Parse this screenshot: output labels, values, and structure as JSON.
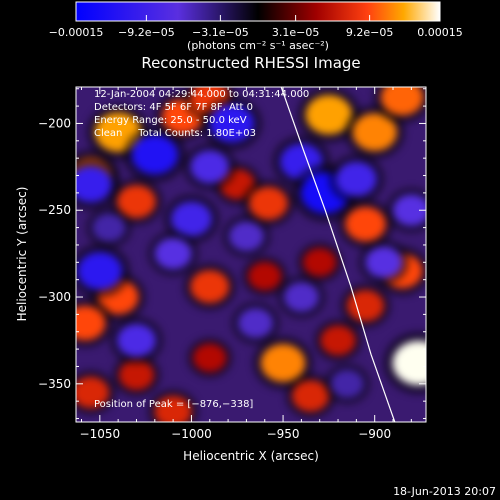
{
  "chart_data": {
    "type": "heatmap",
    "title": "Reconstructed RHESSI Image",
    "xlabel": "Heliocentric X (arcsec)",
    "ylabel": "Heliocentric Y (arcsec)",
    "xlim": [
      -1063,
      -872
    ],
    "ylim": [
      -372,
      -179
    ],
    "xticks": [
      -1050,
      -1000,
      -950,
      -900
    ],
    "xtick_labels": [
      "−1050",
      "−1000",
      "−950",
      "−900"
    ],
    "yticks": [
      -200,
      -250,
      -300,
      -350
    ],
    "ytick_labels": [
      "−200",
      "−250",
      "−300",
      "−350"
    ],
    "colorbar": {
      "range": [
        -0.00015,
        0.00015
      ],
      "ticks": [
        -0.00015,
        -9.2e-05,
        -3.1e-05,
        3.1e-05,
        9.2e-05,
        0.00015
      ],
      "tick_labels": [
        "−0.00015",
        "−9.2e−05",
        "−3.1e−05",
        "3.1e−05",
        "9.2e−05",
        "0.00015"
      ],
      "unit_label": "(photons cm⁻² s⁻¹ asec⁻²)"
    },
    "annotations": [
      "12-Jan-2004 04:29:44.000 to 04:31:44.000",
      "Detectors: 4F 5F 6F 7F 8F, Att 0",
      "Energy Range: 25.0 - 50.0 keV",
      "Clean     Total Counts: 1.80E+03"
    ],
    "peak_label": "Position of Peak = [−876,−338]",
    "peak": [
      -876,
      -338
    ],
    "limb": [
      [
        -951,
        -179
      ],
      [
        -939,
        -215
      ],
      [
        -927,
        -250
      ],
      [
        -913,
        -294
      ],
      [
        -902,
        -333
      ],
      [
        -889,
        -372
      ]
    ],
    "blobs": [
      {
        "x": -1040,
        "y": -205,
        "v": 0.00012
      },
      {
        "x": -1055,
        "y": -230,
        "v": 0.0001
      },
      {
        "x": -1030,
        "y": -245,
        "v": 8e-05
      },
      {
        "x": -1005,
        "y": -196,
        "v": 9e-05
      },
      {
        "x": -990,
        "y": -185,
        "v": 8e-05
      },
      {
        "x": -975,
        "y": -235,
        "v": 6e-05
      },
      {
        "x": -958,
        "y": -246,
        "v": 8e-05
      },
      {
        "x": -925,
        "y": -195,
        "v": 0.00012
      },
      {
        "x": -900,
        "y": -205,
        "v": 0.00011
      },
      {
        "x": -885,
        "y": -185,
        "v": 0.0001
      },
      {
        "x": -905,
        "y": -258,
        "v": 9e-05
      },
      {
        "x": -1040,
        "y": -300,
        "v": 9e-05
      },
      {
        "x": -1058,
        "y": -315,
        "v": 9e-05
      },
      {
        "x": -990,
        "y": -294,
        "v": 8e-05
      },
      {
        "x": -960,
        "y": -288,
        "v": 5e-05
      },
      {
        "x": -950,
        "y": -338,
        "v": 0.00011
      },
      {
        "x": -935,
        "y": -357,
        "v": 7e-05
      },
      {
        "x": -1055,
        "y": -355,
        "v": 7e-05
      },
      {
        "x": -1030,
        "y": -345,
        "v": 6e-05
      },
      {
        "x": -990,
        "y": -335,
        "v": 5e-05
      },
      {
        "x": -905,
        "y": -305,
        "v": 7e-05
      },
      {
        "x": -876,
        "y": -338,
        "v": 0.00015
      },
      {
        "x": -885,
        "y": -285,
        "v": 9e-05
      },
      {
        "x": -920,
        "y": -325,
        "v": 6e-05
      },
      {
        "x": -1010,
        "y": -366,
        "v": 7e-05
      },
      {
        "x": -930,
        "y": -280,
        "v": 5e-05
      },
      {
        "x": -1055,
        "y": -235,
        "v": -0.0001
      },
      {
        "x": -1020,
        "y": -218,
        "v": -0.00012
      },
      {
        "x": -1000,
        "y": -255,
        "v": -9e-05
      },
      {
        "x": -978,
        "y": -200,
        "v": -0.00011
      },
      {
        "x": -990,
        "y": -225,
        "v": -8e-05
      },
      {
        "x": -940,
        "y": -222,
        "v": -0.0001
      },
      {
        "x": -927,
        "y": -240,
        "v": -0.00013
      },
      {
        "x": -910,
        "y": -232,
        "v": -9e-05
      },
      {
        "x": -1050,
        "y": -285,
        "v": -0.00011
      },
      {
        "x": -1010,
        "y": -275,
        "v": -7e-05
      },
      {
        "x": -965,
        "y": -315,
        "v": -6e-05
      },
      {
        "x": -1030,
        "y": -325,
        "v": -8e-05
      },
      {
        "x": -940,
        "y": -300,
        "v": -6e-05
      },
      {
        "x": -895,
        "y": -280,
        "v": -7e-05
      },
      {
        "x": -915,
        "y": -350,
        "v": -5e-05
      },
      {
        "x": -880,
        "y": -250,
        "v": -7e-05
      },
      {
        "x": -970,
        "y": -265,
        "v": -6e-05
      },
      {
        "x": -1045,
        "y": -260,
        "v": -5e-05
      }
    ]
  },
  "footer": {
    "timestamp": "18-Jun-2013 20:07"
  }
}
